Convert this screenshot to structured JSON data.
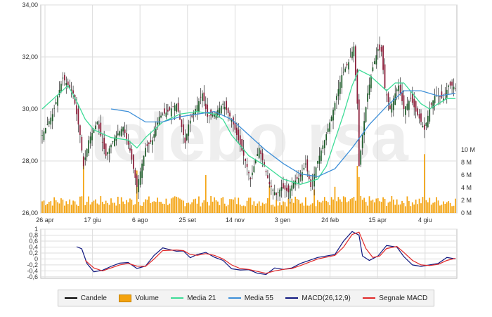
{
  "chart_data": [
    {
      "type": "candlestick",
      "x_ticks": [
        "26 apr",
        "17 giu",
        "6 ago",
        "25 set",
        "14 nov",
        "3 gen",
        "24 feb",
        "15 apr",
        "4 giu"
      ],
      "y_ticks": [
        "34,00",
        "32,00",
        "30,00",
        "28,00",
        "26,00"
      ],
      "ylim": [
        26,
        34
      ],
      "volume_ticks": [
        "10 M",
        "8 M",
        "6 M",
        "4 M",
        "2 M",
        "0 M"
      ],
      "volume_lim": [
        0,
        10
      ],
      "watermark": "telebo rsa",
      "close_path": [
        [
          0,
          29.0
        ],
        [
          6,
          29.8
        ],
        [
          12,
          31.2
        ],
        [
          18,
          30.6
        ],
        [
          22,
          29.0
        ],
        [
          24,
          27.8
        ],
        [
          27,
          28.8
        ],
        [
          32,
          29.5
        ],
        [
          37,
          28.2
        ],
        [
          42,
          28.9
        ],
        [
          47,
          29.3
        ],
        [
          51,
          28.4
        ],
        [
          55,
          27.0
        ],
        [
          57,
          27.6
        ],
        [
          60,
          28.5
        ],
        [
          64,
          28.8
        ],
        [
          68,
          29.7
        ],
        [
          73,
          29.9
        ],
        [
          78,
          30.2
        ],
        [
          83,
          28.7
        ],
        [
          85,
          29.4
        ],
        [
          89,
          30.0
        ],
        [
          93,
          30.6
        ],
        [
          96,
          29.7
        ],
        [
          100,
          29.8
        ],
        [
          105,
          30.2
        ],
        [
          110,
          29.6
        ],
        [
          114,
          28.8
        ],
        [
          118,
          28.0
        ],
        [
          121,
          27.3
        ],
        [
          123,
          27.8
        ],
        [
          126,
          28.5
        ],
        [
          129,
          27.8
        ],
        [
          132,
          27.1
        ],
        [
          136,
          26.7
        ],
        [
          139,
          27.0
        ],
        [
          143,
          26.8
        ],
        [
          146,
          27.2
        ],
        [
          150,
          27.4
        ],
        [
          153,
          27.9
        ],
        [
          156,
          27.0
        ],
        [
          160,
          28.0
        ],
        [
          164,
          28.8
        ],
        [
          168,
          29.7
        ],
        [
          171,
          30.5
        ],
        [
          174,
          31.3
        ],
        [
          178,
          31.8
        ],
        [
          181,
          32.4
        ],
        [
          183,
          30.2
        ],
        [
          184,
          27.8
        ],
        [
          186,
          29.0
        ],
        [
          189,
          30.6
        ],
        [
          192,
          31.6
        ],
        [
          195,
          32.3
        ],
        [
          197,
          32.2
        ],
        [
          199,
          30.8
        ],
        [
          202,
          30.0
        ],
        [
          205,
          30.6
        ],
        [
          207,
          30.9
        ],
        [
          210,
          30.0
        ],
        [
          214,
          30.4
        ],
        [
          217,
          29.9
        ],
        [
          220,
          29.5
        ],
        [
          222,
          29.2
        ],
        [
          225,
          30.0
        ],
        [
          228,
          30.5
        ],
        [
          230,
          30.5
        ],
        [
          233,
          30.4
        ],
        [
          236,
          30.9
        ],
        [
          238,
          30.9
        ],
        [
          240,
          30.8
        ]
      ],
      "ma21_path": [
        [
          0,
          30.0
        ],
        [
          10,
          30.6
        ],
        [
          15,
          30.9
        ],
        [
          20,
          30.3
        ],
        [
          25,
          29.6
        ],
        [
          30,
          29.2
        ],
        [
          40,
          28.9
        ],
        [
          50,
          28.8
        ],
        [
          55,
          28.5
        ],
        [
          60,
          28.9
        ],
        [
          70,
          29.5
        ],
        [
          80,
          29.8
        ],
        [
          90,
          29.9
        ],
        [
          100,
          29.8
        ],
        [
          105,
          29.6
        ],
        [
          110,
          29.0
        ],
        [
          120,
          28.2
        ],
        [
          130,
          27.8
        ],
        [
          140,
          27.3
        ],
        [
          150,
          27.1
        ],
        [
          160,
          27.3
        ],
        [
          165,
          27.8
        ],
        [
          170,
          28.8
        ],
        [
          175,
          29.8
        ],
        [
          180,
          30.9
        ],
        [
          184,
          31.5
        ],
        [
          190,
          31.3
        ],
        [
          195,
          31.0
        ],
        [
          200,
          30.7
        ],
        [
          205,
          31.0
        ],
        [
          210,
          31.0
        ],
        [
          215,
          30.6
        ],
        [
          220,
          30.2
        ],
        [
          225,
          30.0
        ],
        [
          230,
          30.2
        ],
        [
          235,
          30.4
        ],
        [
          240,
          30.4
        ]
      ],
      "ma55_path": [
        [
          40,
          30.0
        ],
        [
          50,
          29.9
        ],
        [
          60,
          29.5
        ],
        [
          70,
          29.5
        ],
        [
          80,
          29.7
        ],
        [
          90,
          29.8
        ],
        [
          100,
          29.9
        ],
        [
          110,
          29.6
        ],
        [
          120,
          29.0
        ],
        [
          130,
          28.4
        ],
        [
          140,
          27.9
        ],
        [
          150,
          27.5
        ],
        [
          160,
          27.4
        ],
        [
          170,
          27.7
        ],
        [
          180,
          28.5
        ],
        [
          190,
          29.4
        ],
        [
          200,
          30.1
        ],
        [
          205,
          30.4
        ],
        [
          210,
          30.7
        ],
        [
          220,
          30.7
        ],
        [
          230,
          30.5
        ],
        [
          240,
          30.6
        ]
      ]
    },
    {
      "type": "line",
      "y_ticks": [
        "1",
        "0,8",
        "0,6",
        "0,4",
        "0,2",
        "0",
        "-0,2",
        "-0,4",
        "-0,6"
      ],
      "ylim": [
        -0.65,
        1
      ],
      "series": [
        {
          "name": "MACD(26,12,9)",
          "path": [
            [
              20,
              0.41
            ],
            [
              23,
              0.34
            ],
            [
              26,
              -0.15
            ],
            [
              30,
              -0.43
            ],
            [
              35,
              -0.38
            ],
            [
              40,
              -0.25
            ],
            [
              45,
              -0.14
            ],
            [
              50,
              -0.12
            ],
            [
              55,
              -0.32
            ],
            [
              60,
              -0.24
            ],
            [
              65,
              0.12
            ],
            [
              70,
              0.37
            ],
            [
              78,
              0.26
            ],
            [
              82,
              0.27
            ],
            [
              86,
              0.04
            ],
            [
              90,
              0.15
            ],
            [
              95,
              0.22
            ],
            [
              100,
              0.06
            ],
            [
              105,
              -0.05
            ],
            [
              110,
              -0.33
            ],
            [
              115,
              -0.37
            ],
            [
              120,
              -0.36
            ],
            [
              125,
              -0.48
            ],
            [
              130,
              -0.52
            ],
            [
              135,
              -0.3
            ],
            [
              140,
              -0.35
            ],
            [
              145,
              -0.3
            ],
            [
              150,
              -0.15
            ],
            [
              160,
              0.05
            ],
            [
              170,
              0.15
            ],
            [
              175,
              0.6
            ],
            [
              180,
              0.92
            ],
            [
              184,
              0.8
            ],
            [
              186,
              0.1
            ],
            [
              190,
              -0.05
            ],
            [
              195,
              0.1
            ],
            [
              200,
              0.45
            ],
            [
              206,
              0.4
            ],
            [
              210,
              0.08
            ],
            [
              215,
              -0.2
            ],
            [
              220,
              -0.25
            ],
            [
              225,
              -0.2
            ],
            [
              230,
              -0.15
            ],
            [
              235,
              0.05
            ],
            [
              240,
              0.0
            ]
          ]
        },
        {
          "name": "Segnale MACD",
          "path": [
            [
              25,
              -0.05
            ],
            [
              30,
              -0.3
            ],
            [
              35,
              -0.4
            ],
            [
              40,
              -0.3
            ],
            [
              45,
              -0.2
            ],
            [
              50,
              -0.15
            ],
            [
              55,
              -0.24
            ],
            [
              60,
              -0.25
            ],
            [
              65,
              0.0
            ],
            [
              70,
              0.28
            ],
            [
              78,
              0.3
            ],
            [
              82,
              0.28
            ],
            [
              86,
              0.15
            ],
            [
              90,
              0.12
            ],
            [
              95,
              0.18
            ],
            [
              100,
              0.12
            ],
            [
              105,
              0.0
            ],
            [
              110,
              -0.2
            ],
            [
              115,
              -0.32
            ],
            [
              120,
              -0.35
            ],
            [
              125,
              -0.42
            ],
            [
              130,
              -0.48
            ],
            [
              135,
              -0.4
            ],
            [
              140,
              -0.35
            ],
            [
              145,
              -0.32
            ],
            [
              150,
              -0.22
            ],
            [
              160,
              0.0
            ],
            [
              170,
              0.12
            ],
            [
              175,
              0.4
            ],
            [
              180,
              0.82
            ],
            [
              184,
              0.9
            ],
            [
              188,
              0.35
            ],
            [
              192,
              0.05
            ],
            [
              196,
              0.1
            ],
            [
              200,
              0.35
            ],
            [
              206,
              0.42
            ],
            [
              210,
              0.22
            ],
            [
              215,
              -0.05
            ],
            [
              220,
              -0.2
            ],
            [
              225,
              -0.22
            ],
            [
              230,
              -0.18
            ],
            [
              235,
              -0.05
            ],
            [
              240,
              0.02
            ]
          ]
        }
      ]
    }
  ],
  "legend": {
    "items": [
      {
        "name": "Candele",
        "color": "#000000",
        "kind": "line"
      },
      {
        "name": "Volume",
        "color": "#f4a30f",
        "kind": "box"
      },
      {
        "name": "Media 21",
        "color": "#3ddc97",
        "kind": "line"
      },
      {
        "name": "Media 55",
        "color": "#3d8fd8",
        "kind": "line"
      },
      {
        "name": "MACD(26,12,9)",
        "color": "#101880",
        "kind": "line"
      },
      {
        "name": "Segnale MACD",
        "color": "#e02828",
        "kind": "line"
      }
    ]
  },
  "colors": {
    "candle_up": "#1c5a28",
    "candle_down": "#8a1c38",
    "volume": "#f4a30f",
    "grid": "#dddddd"
  }
}
